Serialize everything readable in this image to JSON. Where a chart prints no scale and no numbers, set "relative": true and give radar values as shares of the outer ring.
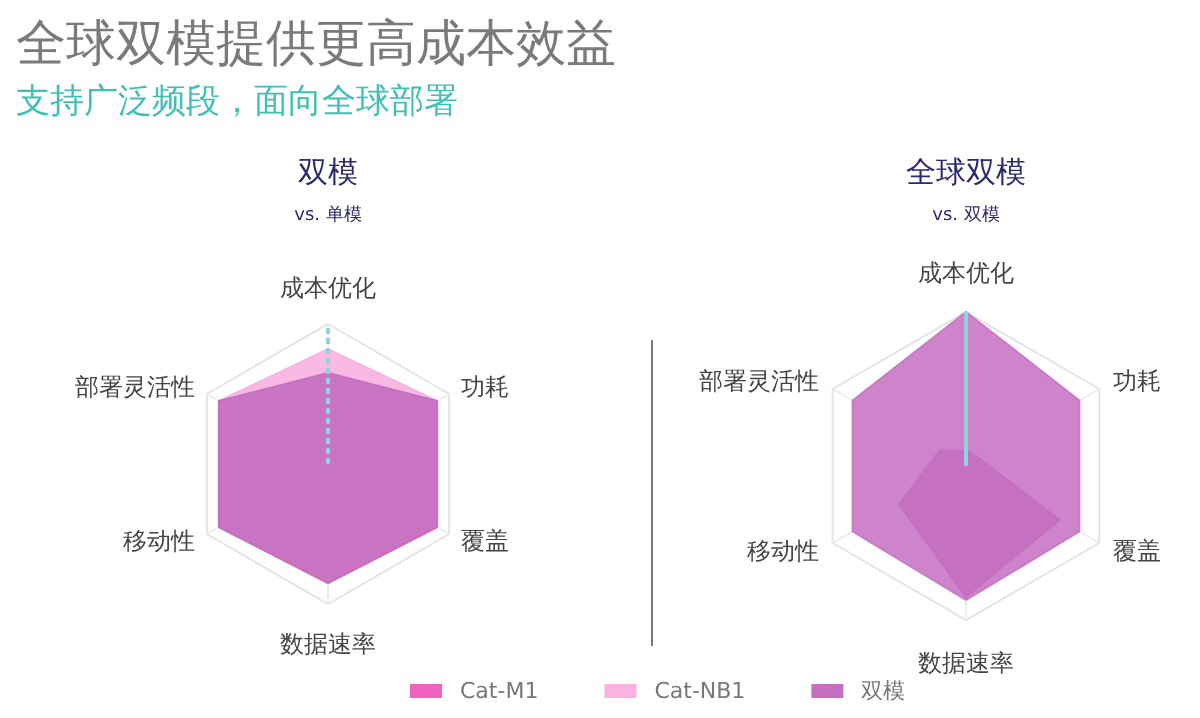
{
  "chart_data": [
    {
      "type": "radar",
      "title": "全球双模提供更高成本效益",
      "subtitle": "支持广泛频段，面向全球部署",
      "annotations": [
        "双模",
        "vs. 单模"
      ],
      "relative": true,
      "legend": "bottom",
      "categories": [
        "成本优化",
        "功耗",
        "覆盖",
        "数据速率",
        "移动性",
        "部署灵活性"
      ],
      "series": [
        {
          "name": "Cat-M1",
          "color": "#f062c0",
          "values": [
            0.6,
            0.85,
            0.85,
            0.8,
            0.85,
            0.85
          ]
        },
        {
          "name": "Cat-NB1",
          "color": "#f9b3e3",
          "values": [
            0.82,
            0.9,
            0.9,
            0.85,
            0.9,
            0.9
          ]
        },
        {
          "name": "双模",
          "color": "#c46fc0",
          "values": [
            0.65,
            0.9,
            0.9,
            0.85,
            0.9,
            0.9
          ]
        }
      ]
    },
    {
      "type": "radar",
      "annotations": [
        "全球双模",
        "vs. 双模"
      ],
      "relative": true,
      "categories": [
        "成本优化",
        "功耗",
        "覆盖",
        "数据速率",
        "移动性",
        "部署灵活性"
      ],
      "series": [
        {
          "color": "#c97ac6",
          "values": [
            1,
            0.85,
            0.85,
            0.87,
            0.85,
            0.85
          ]
        },
        {
          "color": "#c46fc0",
          "values": [
            0.1,
            0.1,
            0.7,
            0.85,
            0.5,
            0.2
          ]
        }
      ]
    }
  ]
}
